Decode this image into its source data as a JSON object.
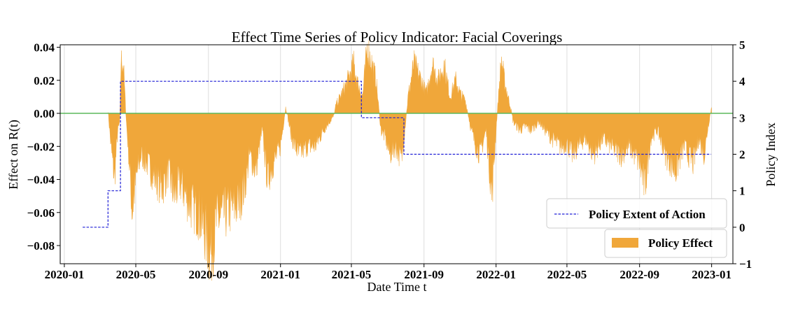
{
  "chart_data": {
    "type": "area",
    "title": "Effect Time Series of Policy Indicator: Facial Coverings",
    "xlabel": "Date Time t",
    "ylabel": "Effect on R(t)",
    "y2label": "Policy Index",
    "x_ticks": [
      "2020-01",
      "2020-05",
      "2020-09",
      "2021-01",
      "2021-05",
      "2021-09",
      "2022-01",
      "2022-05",
      "2022-09",
      "2023-01"
    ],
    "y_ticks": [
      "0.04",
      "0.02",
      "0.00",
      "−0.02",
      "−0.04",
      "−0.06",
      "−0.08"
    ],
    "y2_ticks": [
      "5",
      "4",
      "3",
      "2",
      "1",
      "0",
      "−1"
    ],
    "xlim": [
      "2019-12-25",
      "2023-02-06"
    ],
    "ylim": [
      -0.091,
      0.0415
    ],
    "y2lim": [
      -1,
      5
    ],
    "grid": "vertical",
    "legend_placement": "lower-right",
    "series": [
      {
        "name": "Policy Effect",
        "kind": "area",
        "color": "#f0a73a",
        "points": [
          [
            "2020-03-15",
            0.002
          ],
          [
            "2020-03-20",
            -0.02
          ],
          [
            "2020-03-26",
            -0.04
          ],
          [
            "2020-03-31",
            -0.012
          ],
          [
            "2020-04-04",
            -0.005
          ],
          [
            "2020-04-06",
            0.032
          ],
          [
            "2020-04-10",
            0.03
          ],
          [
            "2020-04-15",
            -0.005
          ],
          [
            "2020-04-20",
            -0.03
          ],
          [
            "2020-04-25",
            -0.06
          ],
          [
            "2020-05-01",
            -0.04
          ],
          [
            "2020-05-10",
            -0.025
          ],
          [
            "2020-05-20",
            -0.03
          ],
          [
            "2020-06-01",
            -0.038
          ],
          [
            "2020-06-15",
            -0.045
          ],
          [
            "2020-06-25",
            -0.035
          ],
          [
            "2020-07-05",
            -0.05
          ],
          [
            "2020-07-15",
            -0.042
          ],
          [
            "2020-08-01",
            -0.055
          ],
          [
            "2020-08-15",
            -0.06
          ],
          [
            "2020-08-25",
            -0.07
          ],
          [
            "2020-09-05",
            -0.085
          ],
          [
            "2020-09-15",
            -0.065
          ],
          [
            "2020-10-01",
            -0.06
          ],
          [
            "2020-10-20",
            -0.055
          ],
          [
            "2020-11-01",
            -0.045
          ],
          [
            "2020-11-10",
            -0.025
          ],
          [
            "2020-11-20",
            -0.035
          ],
          [
            "2020-12-01",
            -0.01
          ],
          [
            "2020-12-10",
            -0.04
          ],
          [
            "2020-12-20",
            -0.03
          ],
          [
            "2021-01-01",
            -0.02
          ],
          [
            "2021-01-10",
            0.004
          ],
          [
            "2021-01-20",
            -0.015
          ],
          [
            "2021-02-01",
            -0.025
          ],
          [
            "2021-02-15",
            -0.02
          ],
          [
            "2021-03-01",
            -0.02
          ],
          [
            "2021-03-15",
            -0.01
          ],
          [
            "2021-03-25",
            -0.005
          ],
          [
            "2021-04-01",
            -0.002
          ],
          [
            "2021-04-05",
            0.005
          ],
          [
            "2021-04-15",
            0.012
          ],
          [
            "2021-04-25",
            0.02
          ],
          [
            "2021-05-05",
            0.03
          ],
          [
            "2021-05-12",
            0.018
          ],
          [
            "2021-05-20",
            0.01
          ],
          [
            "2021-05-28",
            0.04
          ],
          [
            "2021-06-05",
            0.03
          ],
          [
            "2021-06-12",
            0.02
          ],
          [
            "2021-06-20",
            -0.01
          ],
          [
            "2021-06-28",
            -0.015
          ],
          [
            "2021-07-05",
            -0.025
          ],
          [
            "2021-07-15",
            -0.02
          ],
          [
            "2021-07-25",
            -0.028
          ],
          [
            "2021-08-01",
            -0.005
          ],
          [
            "2021-08-05",
            0.01
          ],
          [
            "2021-08-15",
            0.03
          ],
          [
            "2021-08-25",
            0.022
          ],
          [
            "2021-09-05",
            0.012
          ],
          [
            "2021-09-15",
            0.03
          ],
          [
            "2021-09-25",
            0.02
          ],
          [
            "2021-10-05",
            0.03
          ],
          [
            "2021-10-15",
            0.01
          ],
          [
            "2021-10-25",
            0.02
          ],
          [
            "2021-11-01",
            0.012
          ],
          [
            "2021-11-10",
            0.008
          ],
          [
            "2021-11-20",
            -0.01
          ],
          [
            "2021-11-28",
            -0.02
          ],
          [
            "2021-12-05",
            -0.025
          ],
          [
            "2021-12-15",
            -0.01
          ],
          [
            "2021-12-25",
            -0.05
          ],
          [
            "2022-01-02",
            -0.005
          ],
          [
            "2022-01-05",
            0.01
          ],
          [
            "2022-01-10",
            0.033
          ],
          [
            "2022-01-15",
            0.02
          ],
          [
            "2022-01-20",
            0.012
          ],
          [
            "2022-01-25",
            0.005
          ],
          [
            "2022-01-30",
            -0.005
          ],
          [
            "2022-02-10",
            -0.01
          ],
          [
            "2022-02-20",
            -0.008
          ],
          [
            "2022-03-01",
            -0.01
          ],
          [
            "2022-03-15",
            -0.005
          ],
          [
            "2022-03-25",
            -0.01
          ],
          [
            "2022-04-05",
            -0.015
          ],
          [
            "2022-04-20",
            -0.02
          ],
          [
            "2022-05-01",
            -0.018
          ],
          [
            "2022-05-10",
            -0.025
          ],
          [
            "2022-05-20",
            -0.02
          ],
          [
            "2022-06-01",
            -0.015
          ],
          [
            "2022-06-15",
            -0.025
          ],
          [
            "2022-07-01",
            -0.015
          ],
          [
            "2022-07-15",
            -0.02
          ],
          [
            "2022-08-01",
            -0.025
          ],
          [
            "2022-08-15",
            -0.02
          ],
          [
            "2022-09-01",
            -0.03
          ],
          [
            "2022-09-10",
            -0.045
          ],
          [
            "2022-09-20",
            -0.015
          ],
          [
            "2022-10-01",
            -0.01
          ],
          [
            "2022-10-15",
            -0.025
          ],
          [
            "2022-11-01",
            -0.035
          ],
          [
            "2022-11-15",
            -0.02
          ],
          [
            "2022-12-01",
            -0.03
          ],
          [
            "2022-12-10",
            -0.015
          ],
          [
            "2022-12-20",
            -0.025
          ],
          [
            "2022-12-25",
            -0.01
          ],
          [
            "2023-01-01",
            0.004
          ]
        ]
      },
      {
        "name": "Policy Extent of Action",
        "kind": "step",
        "axis": "y2",
        "color": "#1f1fd6",
        "points": [
          [
            "2020-02-01",
            0
          ],
          [
            "2020-03-15",
            1
          ],
          [
            "2020-04-05",
            4
          ],
          [
            "2021-05-18",
            3
          ],
          [
            "2021-07-29",
            2
          ],
          [
            "2022-12-31",
            2
          ]
        ]
      }
    ],
    "zero_line": {
      "value": 0,
      "color": "#5cb85c"
    }
  }
}
